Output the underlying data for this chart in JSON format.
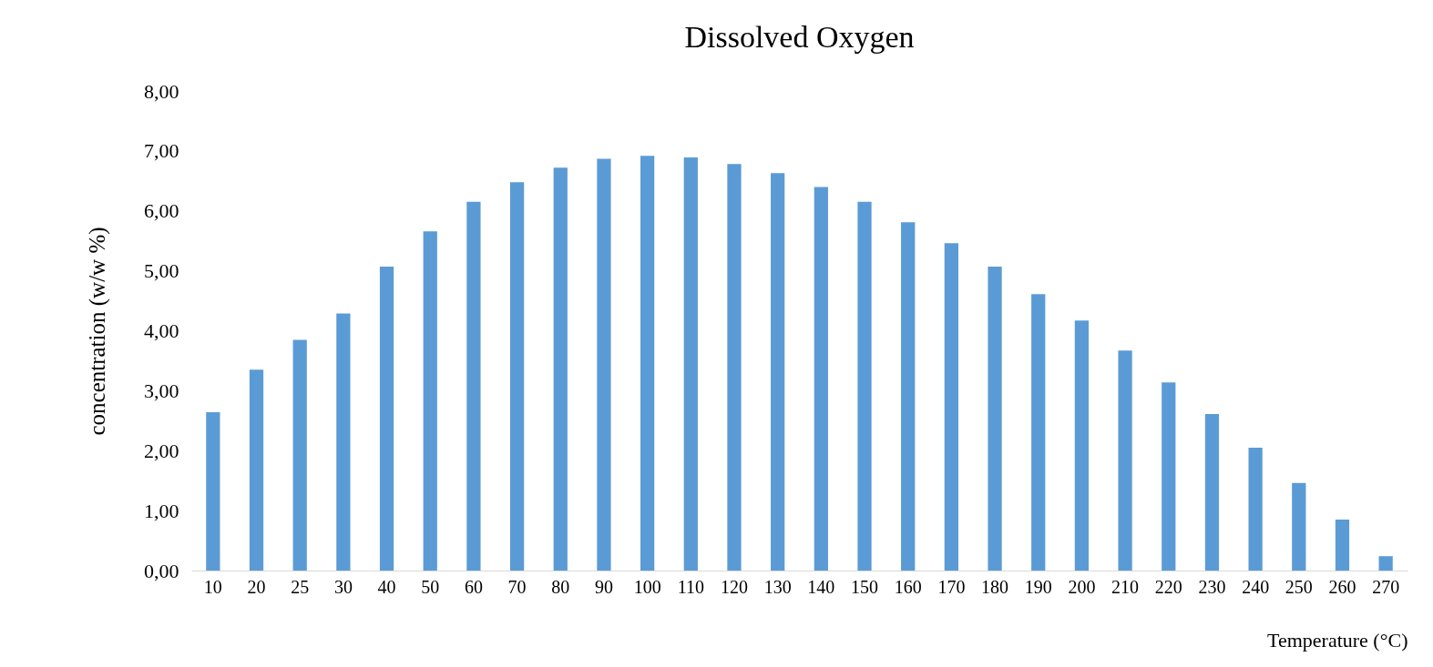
{
  "chart_data": {
    "type": "bar",
    "title": "Dissolved Oxygen",
    "xlabel": "Temperature (°C)",
    "ylabel": "concentration (w/w %)",
    "categories": [
      "10",
      "20",
      "25",
      "30",
      "40",
      "50",
      "60",
      "70",
      "80",
      "90",
      "100",
      "110",
      "120",
      "130",
      "140",
      "150",
      "160",
      "170",
      "180",
      "190",
      "200",
      "210",
      "220",
      "230",
      "240",
      "250",
      "260",
      "270"
    ],
    "values": [
      2.64,
      3.35,
      3.85,
      4.29,
      5.07,
      5.66,
      6.15,
      6.48,
      6.72,
      6.87,
      6.92,
      6.89,
      6.78,
      6.63,
      6.4,
      6.15,
      5.81,
      5.46,
      5.07,
      4.61,
      4.17,
      3.67,
      3.14,
      2.61,
      2.05,
      1.46,
      0.85,
      0.24
    ],
    "color": "#5b9bd5",
    "ylim": [
      0,
      8
    ],
    "yticks": [
      {
        "value": 0,
        "label": "0,00"
      },
      {
        "value": 1,
        "label": "1,00"
      },
      {
        "value": 2,
        "label": "2,00"
      },
      {
        "value": 3,
        "label": "3,00"
      },
      {
        "value": 4,
        "label": "4,00"
      },
      {
        "value": 5,
        "label": "5,00"
      },
      {
        "value": 6,
        "label": "6,00"
      },
      {
        "value": 7,
        "label": "7,00"
      },
      {
        "value": 8,
        "label": "8,00"
      }
    ],
    "grid": false
  }
}
